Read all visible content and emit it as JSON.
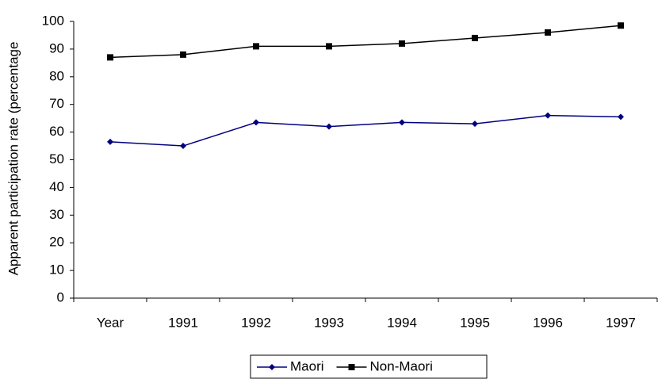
{
  "chart_data": {
    "type": "line",
    "y_label": "Apparent participation rate (percentage",
    "categories": [
      "Year",
      "1991",
      "1992",
      "1993",
      "1994",
      "1995",
      "1996",
      "1997"
    ],
    "series": [
      {
        "name": "Maori",
        "color": "#000080",
        "marker": "diamond",
        "values": [
          56.5,
          55,
          63.5,
          62,
          63.5,
          63,
          66,
          65.5
        ]
      },
      {
        "name": "Non-Maori",
        "color": "#000000",
        "marker": "square",
        "values": [
          87,
          88,
          91,
          91,
          92,
          94,
          96,
          98.5
        ]
      }
    ],
    "ylim": [
      0,
      100
    ],
    "yticks": [
      0,
      10,
      20,
      30,
      40,
      50,
      60,
      70,
      80,
      90,
      100
    ],
    "grid": false,
    "legend": "bottom"
  }
}
